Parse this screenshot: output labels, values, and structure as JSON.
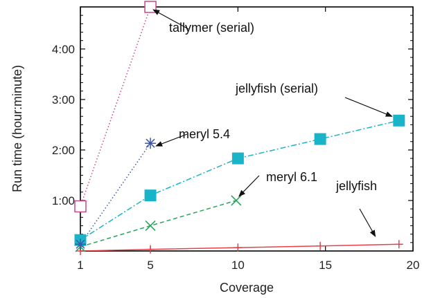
{
  "chart_data": {
    "type": "line",
    "xlabel": "Coverage",
    "ylabel": "Run time (hour:minute)",
    "xlim": [
      1,
      20
    ],
    "ylim": [
      0,
      290
    ],
    "x_ticks": [
      {
        "value": 1,
        "label": "1"
      },
      {
        "value": 5,
        "label": "5"
      },
      {
        "value": 10,
        "label": "10"
      },
      {
        "value": 15,
        "label": "15"
      },
      {
        "value": 20,
        "label": "20"
      }
    ],
    "y_ticks": [
      {
        "value": 60,
        "label": "1:00"
      },
      {
        "value": 120,
        "label": "2:00"
      },
      {
        "value": 180,
        "label": "3:00"
      },
      {
        "value": 240,
        "label": "4:00"
      }
    ],
    "y_unit": "minutes",
    "grid": false,
    "series": [
      {
        "name": "tallymer (serial)",
        "color": "#c6468c",
        "dash": "dotted",
        "marker": "open-square",
        "x": [
          1,
          5
        ],
        "y": [
          53,
          290
        ]
      },
      {
        "name": "meryl 5.4",
        "color": "#3b57a8",
        "dash": "dotted",
        "marker": "star",
        "x": [
          1,
          5
        ],
        "y": [
          8,
          128
        ]
      },
      {
        "name": "jellyfish (serial)",
        "color": "#1ab4c8",
        "dash": "dash-dot",
        "marker": "filled-square",
        "x": [
          1,
          5,
          10,
          14.7,
          19.2
        ],
        "y": [
          13,
          66,
          110,
          133,
          155
        ]
      },
      {
        "name": "meryl 6.1",
        "color": "#27a55a",
        "dash": "dashed",
        "marker": "x",
        "x": [
          1,
          5,
          9.9
        ],
        "y": [
          5,
          30,
          60
        ]
      },
      {
        "name": "jellyfish",
        "color": "#e8404a",
        "dash": "solid",
        "marker": "plus",
        "x": [
          1,
          5,
          10,
          14.7,
          19.2
        ],
        "y": [
          0,
          2,
          4,
          6,
          8
        ]
      }
    ],
    "annotations": [
      {
        "text": "tallymer (serial)",
        "series": 0,
        "point": 1
      },
      {
        "text": "meryl 5.4",
        "series": 1,
        "point": 1
      },
      {
        "text": "jellyfish (serial)",
        "series": 2,
        "point": 4
      },
      {
        "text": "meryl 6.1",
        "series": 3,
        "point": 2
      },
      {
        "text": "jellyfish",
        "series": 4,
        "point": 3.7
      }
    ]
  }
}
